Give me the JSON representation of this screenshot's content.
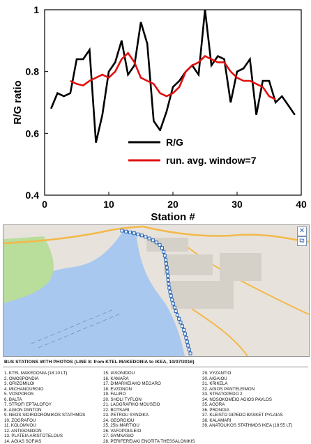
{
  "chart_data": {
    "type": "line",
    "xlabel": "Station #",
    "ylabel": "R/G ratio",
    "xlim": [
      0,
      40
    ],
    "ylim": [
      0.4,
      1.0
    ],
    "xticks": [
      "0",
      "10",
      "20",
      "30",
      "40"
    ],
    "yticks": [
      "0.4",
      "0.6",
      "0.8",
      "1"
    ],
    "legend_position": "lower-right",
    "series": [
      {
        "name": "R/G",
        "color": "#000000",
        "x": [
          1,
          2,
          3,
          4,
          5,
          6,
          7,
          8,
          9,
          10,
          11,
          12,
          13,
          14,
          15,
          16,
          17,
          18,
          19,
          20,
          21,
          22,
          23,
          24,
          25,
          26,
          27,
          28,
          29,
          30,
          31,
          32,
          33,
          34,
          35,
          36,
          37,
          38,
          39
        ],
        "y": [
          0.68,
          0.73,
          0.72,
          0.73,
          0.84,
          0.84,
          0.87,
          0.57,
          0.66,
          0.8,
          0.83,
          0.9,
          0.79,
          0.82,
          0.96,
          0.89,
          0.64,
          0.61,
          0.67,
          0.75,
          0.77,
          0.8,
          0.82,
          0.79,
          1.0,
          0.82,
          0.85,
          0.84,
          0.7,
          0.8,
          0.81,
          0.84,
          0.66,
          0.77,
          0.77,
          0.7,
          0.72,
          0.69,
          0.66
        ]
      },
      {
        "name": "run. avg. window=7",
        "color": "#e01010",
        "x": [
          4,
          5,
          6,
          7,
          8,
          9,
          10,
          11,
          12,
          13,
          14,
          15,
          16,
          17,
          18,
          19,
          20,
          21,
          22,
          23,
          24,
          25,
          26,
          27,
          28,
          29,
          30,
          31,
          32,
          33,
          34,
          35,
          36
        ],
        "y": [
          0.77,
          0.76,
          0.755,
          0.77,
          0.78,
          0.79,
          0.78,
          0.8,
          0.84,
          0.86,
          0.83,
          0.78,
          0.77,
          0.76,
          0.73,
          0.72,
          0.73,
          0.75,
          0.8,
          0.82,
          0.83,
          0.85,
          0.84,
          0.83,
          0.83,
          0.8,
          0.78,
          0.77,
          0.77,
          0.76,
          0.75,
          0.72,
          0.71
        ]
      }
    ]
  },
  "map": {
    "route_color": "#3a78c8",
    "station_color": "#2b66b8",
    "sea_color": "#a9c8f0",
    "park_color": "#b9dd9a",
    "land_color": "#e7e3dc",
    "road_color": "#f4b84a",
    "controls": [
      {
        "name": "close-icon",
        "glyph": "✕"
      },
      {
        "name": "layers-icon",
        "glyph": "⧉"
      }
    ]
  },
  "stations_panel": {
    "title": "BUS STATIONS WITH PHOTOS (LINE 8: from KTEL MAKEDONIA to IKEA, 10/07/2016)",
    "columns": [
      [
        "1. KTEL MAKEDONIA (18:10 LT)",
        "2. OMOSPONDIA",
        "3. ORIZOMILOI",
        "4. MICHANOURGIO",
        "5. VOSPOROS",
        "6. BALTA",
        "7. STROFI EPTALOFOY",
        "8. AGION PANTON",
        "9. NEOS SIDIRODROMIKOS STATHMOS",
        "10. ZOGRAFOU",
        "11. KOLOMVOU",
        "12. ANTIGONIDON",
        "13. PLATEIA ARISTOTELOUS",
        "14. AGIAS SOFIAS"
      ],
      [
        "15. IASONIDOU",
        "16. KAMARA",
        "17. DIMARHEIAKO MEGARO",
        "18. EVZONON",
        "19. FALIRO",
        "20. SHOLI TYFLON",
        "21. LAOGRAFIKO MOUSEIO",
        "22. BOTSARI",
        "23. PETROU SYNDIKA",
        "24. GEORGIOU",
        "25. 25is MARTIOU",
        "26. VAFOPOULEIO",
        "27. GYMNASIO",
        "28. PERIFEREIAKI ENOTITA THESSALONIKIS"
      ],
      [
        "29. VYZANTIO",
        "30. AIGAIOU",
        "31. KRIKELA",
        "32. AGIOS PANTELEIMON",
        "33. STRATOPEDO 2",
        "34. NOSOKOMEIO AGIOS PAVLOS",
        "35. AGORA",
        "36. PRONOIA",
        "37. KLEISTO GIPEDO BASKET PYLAIAS",
        "38. KALAMARI",
        "39. ANATOLIKOS STATHMOS IKEA (18:55 LT)"
      ]
    ]
  }
}
